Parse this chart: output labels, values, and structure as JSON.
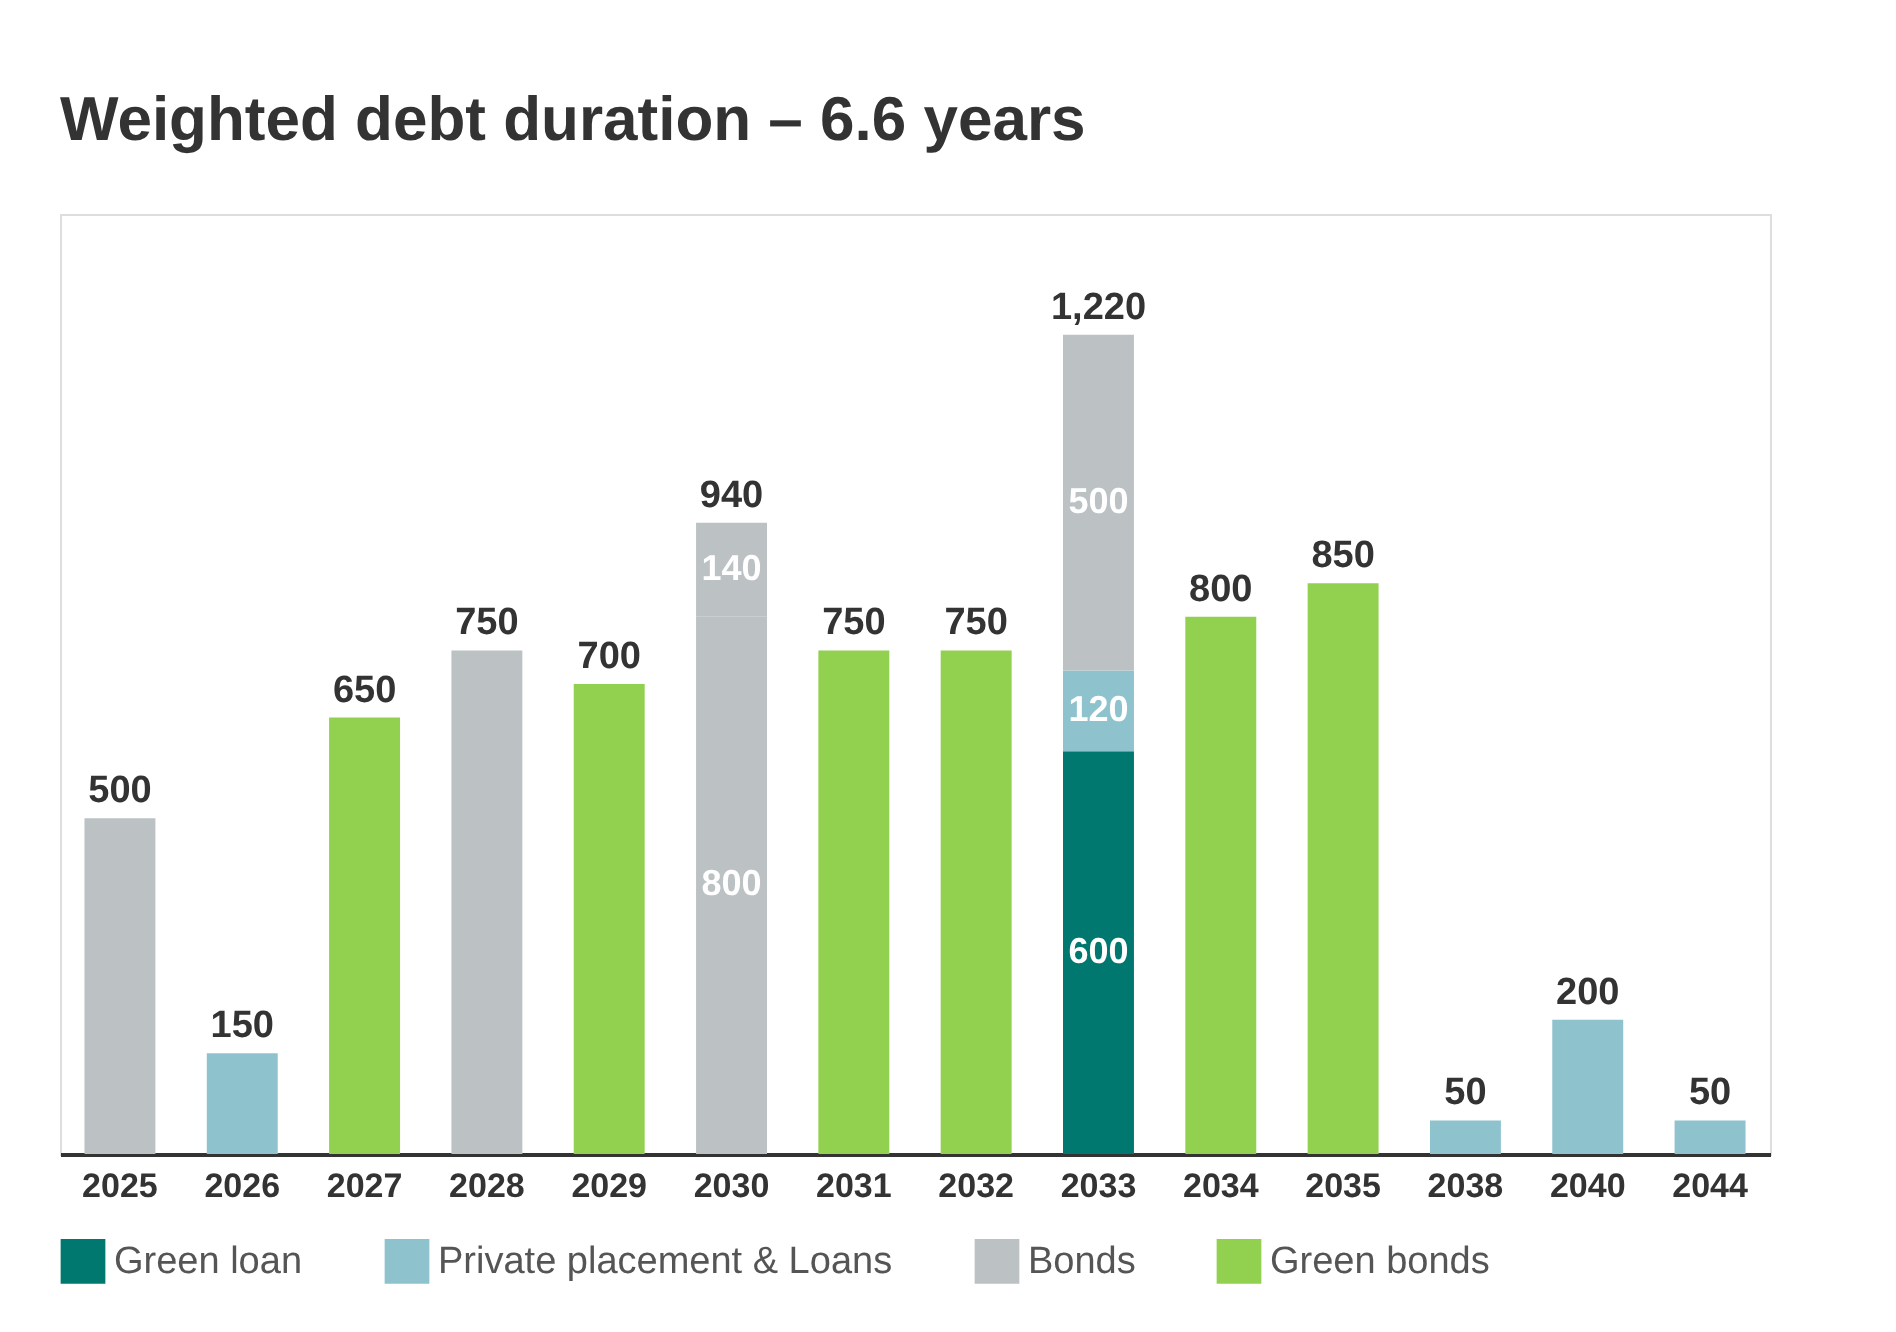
{
  "chart_data": {
    "type": "bar",
    "title": "Weighted debt duration – 6.6 years",
    "stacked": true,
    "categories": [
      "2025",
      "2026",
      "2027",
      "2028",
      "2029",
      "2030",
      "2031",
      "2032",
      "2033",
      "2034",
      "2035",
      "2038",
      "2040",
      "2044"
    ],
    "series": [
      {
        "name": "Green loan",
        "color": "#00786f",
        "values": [
          null,
          null,
          null,
          null,
          null,
          null,
          null,
          null,
          600,
          null,
          null,
          null,
          null,
          null
        ],
        "value_labels": [
          null,
          null,
          null,
          null,
          null,
          null,
          null,
          null,
          "600",
          null,
          null,
          null,
          null,
          null
        ]
      },
      {
        "name": "Private placement & Loans",
        "color": "#8ec3cd",
        "values": [
          null,
          150,
          null,
          null,
          null,
          null,
          null,
          null,
          120,
          null,
          null,
          50,
          200,
          50
        ],
        "value_labels": [
          null,
          null,
          null,
          null,
          null,
          null,
          null,
          null,
          "120",
          null,
          null,
          null,
          null,
          null
        ]
      },
      {
        "name": "Bonds",
        "color": "#bcc2c4",
        "values": [
          500,
          null,
          null,
          750,
          null,
          800,
          null,
          null,
          500,
          null,
          null,
          null,
          null,
          null
        ],
        "value_labels": [
          null,
          null,
          null,
          null,
          null,
          "800",
          null,
          null,
          "500",
          null,
          null,
          null,
          null,
          null
        ]
      },
      {
        "name": "Green bonds",
        "color": "#92d050",
        "values": [
          null,
          null,
          650,
          null,
          700,
          null,
          750,
          750,
          null,
          800,
          850,
          null,
          null,
          null
        ]
      },
      {
        "color": "#bcc2c4",
        "values": [
          null,
          null,
          null,
          null,
          null,
          140,
          null,
          null,
          null,
          null,
          null,
          null,
          null,
          null
        ],
        "value_labels": [
          null,
          null,
          null,
          null,
          null,
          "140",
          null,
          null,
          null,
          null,
          null,
          null,
          null,
          null
        ]
      }
    ],
    "totals": [
      "500",
      "150",
      "650",
      "750",
      "700",
      "940",
      "750",
      "750",
      "1,220",
      "800",
      "850",
      "50",
      "200",
      "50"
    ],
    "ylim": [
      0,
      1400
    ],
    "legend": "bottom"
  }
}
